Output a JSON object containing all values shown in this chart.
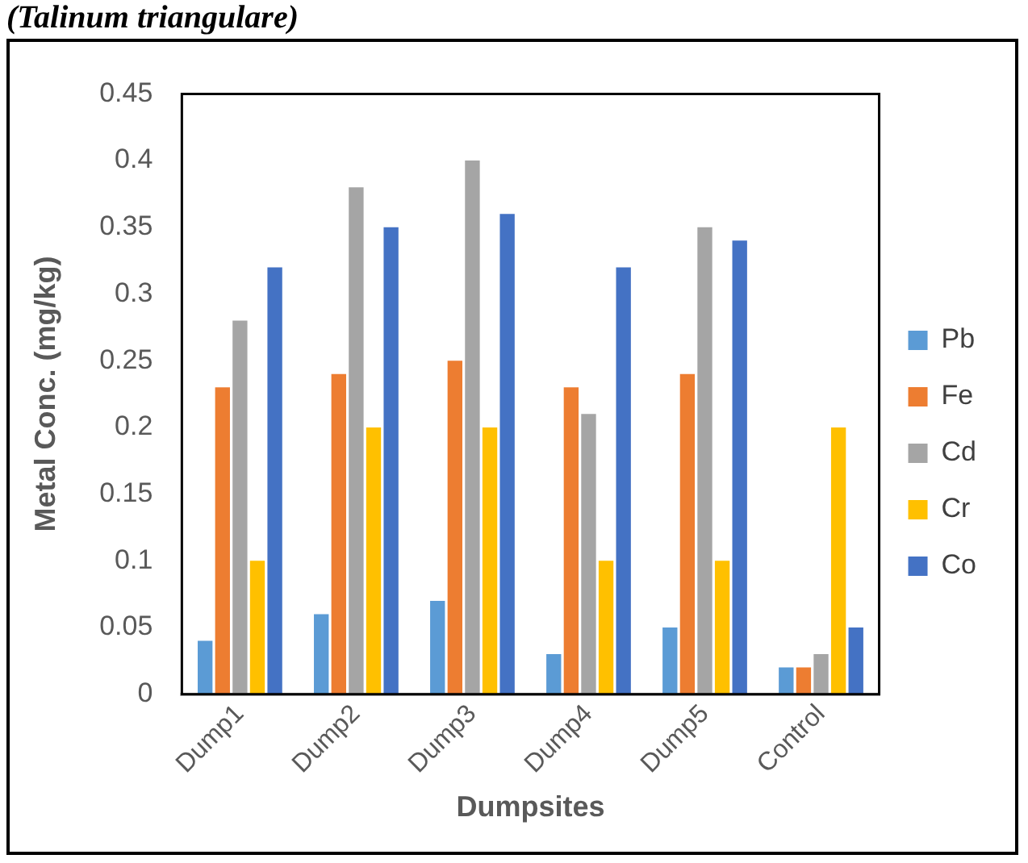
{
  "chart_data": {
    "type": "bar",
    "title": "(Talinum triangulare)",
    "xlabel": "Dumpsites",
    "ylabel": "Metal Conc. (mg/kg)",
    "categories": [
      "Dump1",
      "Dump2",
      "Dump3",
      "Dump4",
      "Dump5",
      "Control"
    ],
    "series": [
      {
        "name": "Pb",
        "color": "#5b9bd5",
        "values": [
          0.04,
          0.06,
          0.07,
          0.03,
          0.05,
          0.02
        ]
      },
      {
        "name": "Fe",
        "color": "#ed7d31",
        "values": [
          0.23,
          0.24,
          0.25,
          0.23,
          0.24,
          0.02
        ]
      },
      {
        "name": "Cd",
        "color": "#a5a5a5",
        "values": [
          0.28,
          0.38,
          0.4,
          0.21,
          0.35,
          0.03
        ]
      },
      {
        "name": "Cr",
        "color": "#ffc000",
        "values": [
          0.1,
          0.2,
          0.2,
          0.1,
          0.1,
          0.2
        ]
      },
      {
        "name": "Co",
        "color": "#4472c4",
        "values": [
          0.32,
          0.35,
          0.36,
          0.32,
          0.34,
          0.05
        ]
      }
    ],
    "ylim": [
      0,
      0.45
    ],
    "yticks": [
      0,
      0.05,
      0.1,
      0.15,
      0.2,
      0.25,
      0.3,
      0.35,
      0.4,
      0.45
    ],
    "grid": false,
    "legend": "right"
  }
}
